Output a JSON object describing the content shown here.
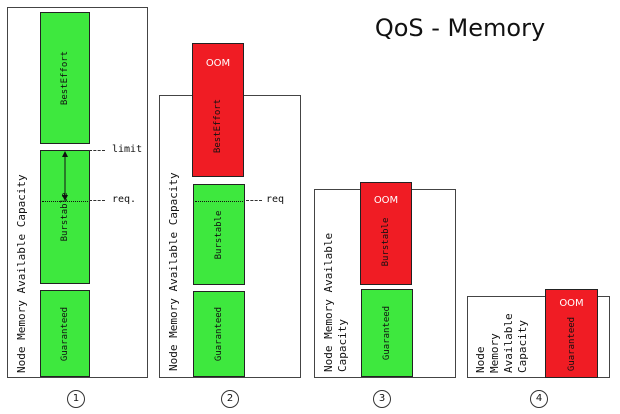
{
  "title": "QoS - Memory",
  "capacity_labels": {
    "n1": "Node Memory Available Capacity",
    "n2": "Node Memory Available Capacity",
    "n3": "Node Memory Available\nCapacity",
    "n4": "Node\nMemory\nAvailable\nCapacity"
  },
  "pods": {
    "besteffort": "BestEffort",
    "burstable": "Burstable",
    "guaranteed": "Guaranteed"
  },
  "oom": "OOM",
  "annotations": {
    "limit": "limit",
    "req_dot": "req.",
    "req": "req"
  },
  "steps": [
    "1",
    "2",
    "3",
    "4"
  ],
  "colors": {
    "green": "#3ee83e",
    "red": "#f01c24"
  }
}
